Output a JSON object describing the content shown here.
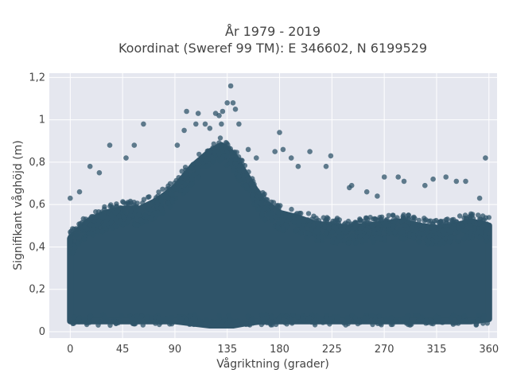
{
  "chart_data": {
    "type": "scatter",
    "title_line1": "År 1979 - 2019",
    "title_line2": "Koordinat (Sweref 99 TM): E 346602, N 6199529",
    "xlabel": "Vågriktning (grader)",
    "ylabel": "Signifikant våghöjd (m)",
    "xlim": [
      -18,
      367
    ],
    "ylim": [
      -0.03,
      1.22
    ],
    "x_ticks": [
      0,
      45,
      90,
      135,
      180,
      225,
      270,
      315,
      360
    ],
    "x_tick_labels": [
      "0",
      "45",
      "90",
      "135",
      "180",
      "225",
      "270",
      "315",
      "360"
    ],
    "y_ticks": [
      0,
      0.2,
      0.4,
      0.6,
      0.8,
      1,
      1.2
    ],
    "y_tick_labels": [
      "0",
      "0,2",
      "0,4",
      "0,6",
      "0,8",
      "1",
      "1,2"
    ],
    "grid": true,
    "legend": "none",
    "marker_color": "#2f5469",
    "plot_background": "#e5e7ef",
    "dense_band": {
      "x": [
        0,
        15,
        30,
        45,
        60,
        75,
        90,
        105,
        120,
        130,
        140,
        150,
        165,
        180,
        195,
        210,
        225,
        240,
        255,
        270,
        285,
        300,
        315,
        330,
        345,
        360
      ],
      "y_low": [
        0.05,
        0.05,
        0.05,
        0.05,
        0.05,
        0.05,
        0.05,
        0.04,
        0.03,
        0.03,
        0.03,
        0.04,
        0.05,
        0.05,
        0.05,
        0.05,
        0.05,
        0.05,
        0.05,
        0.05,
        0.05,
        0.05,
        0.05,
        0.05,
        0.05,
        0.06
      ],
      "y_high": [
        0.44,
        0.52,
        0.56,
        0.58,
        0.58,
        0.62,
        0.68,
        0.78,
        0.85,
        0.88,
        0.84,
        0.75,
        0.62,
        0.56,
        0.54,
        0.51,
        0.5,
        0.49,
        0.5,
        0.51,
        0.52,
        0.5,
        0.49,
        0.5,
        0.52,
        0.5
      ]
    },
    "outliers": [
      {
        "x": 125,
        "y": 1.03
      },
      {
        "x": 128,
        "y": 1.02
      },
      {
        "x": 130,
        "y": 0.98
      },
      {
        "x": 131,
        "y": 1.04
      },
      {
        "x": 135,
        "y": 1.08
      },
      {
        "x": 138,
        "y": 1.16
      },
      {
        "x": 140,
        "y": 1.08
      },
      {
        "x": 142,
        "y": 1.05
      },
      {
        "x": 145,
        "y": 0.98
      },
      {
        "x": 116,
        "y": 0.98
      },
      {
        "x": 110,
        "y": 1.03
      },
      {
        "x": 108,
        "y": 0.98
      },
      {
        "x": 100,
        "y": 1.04
      },
      {
        "x": 98,
        "y": 0.95
      },
      {
        "x": 63,
        "y": 0.98
      },
      {
        "x": 55,
        "y": 0.88
      },
      {
        "x": 34,
        "y": 0.88
      },
      {
        "x": 17,
        "y": 0.78
      },
      {
        "x": 25,
        "y": 0.75
      },
      {
        "x": 48,
        "y": 0.82
      },
      {
        "x": 180,
        "y": 0.94
      },
      {
        "x": 183,
        "y": 0.86
      },
      {
        "x": 176,
        "y": 0.85
      },
      {
        "x": 190,
        "y": 0.82
      },
      {
        "x": 206,
        "y": 0.85
      },
      {
        "x": 220,
        "y": 0.78
      },
      {
        "x": 224,
        "y": 0.83
      },
      {
        "x": 196,
        "y": 0.78
      },
      {
        "x": 242,
        "y": 0.69
      },
      {
        "x": 264,
        "y": 0.64
      },
      {
        "x": 270,
        "y": 0.73
      },
      {
        "x": 282,
        "y": 0.73
      },
      {
        "x": 287,
        "y": 0.71
      },
      {
        "x": 305,
        "y": 0.69
      },
      {
        "x": 312,
        "y": 0.72
      },
      {
        "x": 323,
        "y": 0.73
      },
      {
        "x": 332,
        "y": 0.71
      },
      {
        "x": 340,
        "y": 0.71
      },
      {
        "x": 357,
        "y": 0.82
      },
      {
        "x": 352,
        "y": 0.63
      },
      {
        "x": 240,
        "y": 0.68
      },
      {
        "x": 255,
        "y": 0.66
      },
      {
        "x": 0,
        "y": 0.63
      },
      {
        "x": 8,
        "y": 0.66
      },
      {
        "x": 160,
        "y": 0.82
      },
      {
        "x": 153,
        "y": 0.86
      },
      {
        "x": 120,
        "y": 0.96
      },
      {
        "x": 92,
        "y": 0.88
      }
    ]
  }
}
